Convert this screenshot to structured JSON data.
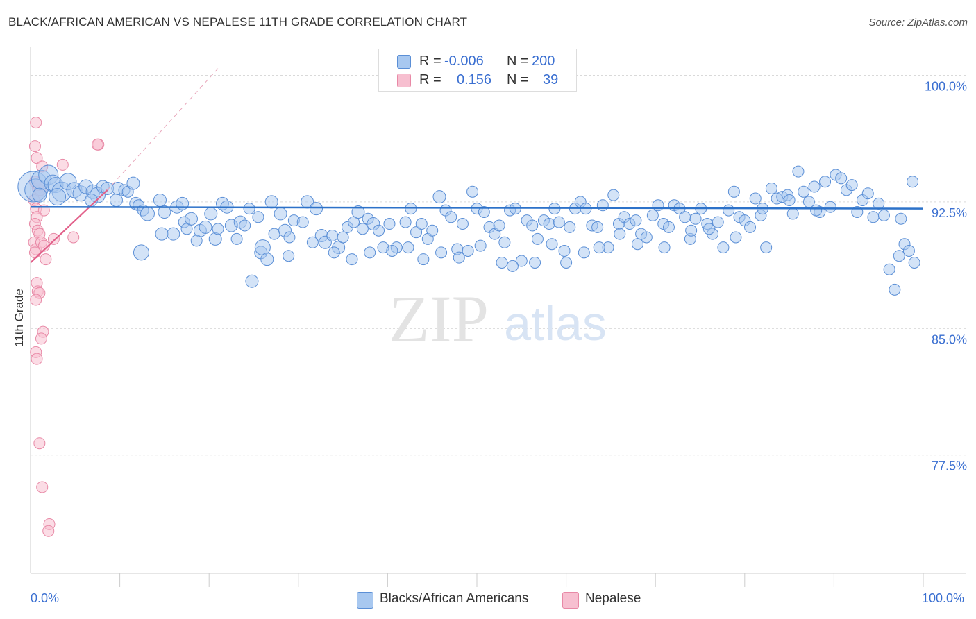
{
  "header": {
    "title": "BLACK/AFRICAN AMERICAN VS NEPALESE 11TH GRADE CORRELATION CHART",
    "source": "Source: ZipAtlas.com"
  },
  "legend_stats": {
    "blacks": {
      "r_label": "R =",
      "r_value": "-0.006",
      "n_label": "N =",
      "n_value": "200"
    },
    "nepalese": {
      "r_label": "R =",
      "r_value": "0.156",
      "n_label": "N =",
      "n_value": "39"
    }
  },
  "bottom_legend": {
    "blacks": "Blacks/African Americans",
    "nepalese": "Nepalese"
  },
  "axis_labels": {
    "y": "11th Grade",
    "x_min": "0.0%",
    "x_max": "100.0%",
    "y_ticks": [
      "100.0%",
      "92.5%",
      "85.0%",
      "77.5%"
    ]
  },
  "watermark": {
    "zip": "ZIP",
    "atlas": "atlas"
  },
  "colors": {
    "blue_fill": "#a8c8f0",
    "blue_stroke": "#5b8fd6",
    "blue_line": "#2d72c9",
    "pink_fill": "#f7bfd0",
    "pink_stroke": "#e889a6",
    "pink_line": "#e2608a",
    "grid": "#d9d9d9",
    "tick_text": "#3a6fd1"
  },
  "chart_data": {
    "type": "scatter",
    "title": "BLACK/AFRICAN AMERICAN VS NEPALESE 11TH GRADE CORRELATION CHART",
    "xlabel": "",
    "ylabel": "11th Grade",
    "xlim": [
      0,
      100
    ],
    "ylim": [
      70.5,
      101.5
    ],
    "y_ticks": [
      77.5,
      85.0,
      92.5,
      100.0
    ],
    "grid": true,
    "series": [
      {
        "name": "Blacks/African Americans",
        "r": -0.006,
        "n": 200,
        "trend": {
          "x": [
            0,
            100
          ],
          "y": [
            92.2,
            92.1
          ]
        },
        "points": [
          [
            0.3,
            93.4,
            22
          ],
          [
            0.6,
            93.2,
            16
          ],
          [
            1.2,
            93.8,
            14
          ],
          [
            2.0,
            94.1,
            14
          ],
          [
            2.5,
            93.6,
            12
          ],
          [
            2.8,
            93.5,
            11
          ],
          [
            3.5,
            93.1,
            14
          ],
          [
            4.2,
            93.7,
            12
          ],
          [
            4.9,
            93.2,
            11
          ],
          [
            5.6,
            93.0,
            11
          ],
          [
            6.2,
            93.4,
            10
          ],
          [
            7.0,
            93.1,
            10
          ],
          [
            7.5,
            92.9,
            11
          ],
          [
            8.1,
            93.4,
            9
          ],
          [
            8.6,
            93.3,
            9
          ],
          [
            9.6,
            92.6,
            9
          ],
          [
            9.8,
            93.3,
            9
          ],
          [
            10.5,
            93.2,
            8
          ],
          [
            10.9,
            93.1,
            8
          ],
          [
            11.5,
            93.6,
            9
          ],
          [
            11.8,
            92.4,
            9
          ],
          [
            12.1,
            92.3,
            8
          ],
          [
            12.6,
            92.0,
            8
          ],
          [
            13.1,
            91.8,
            10
          ],
          [
            14.5,
            92.6,
            9
          ],
          [
            15.0,
            91.9,
            9
          ],
          [
            16.4,
            92.2,
            9
          ],
          [
            17.0,
            92.4,
            9
          ],
          [
            14.7,
            90.6,
            9
          ],
          [
            16.0,
            90.6,
            9
          ],
          [
            17.2,
            91.3,
            8
          ],
          [
            17.5,
            90.9,
            8
          ],
          [
            18.0,
            91.5,
            9
          ],
          [
            19.0,
            90.8,
            9
          ],
          [
            19.6,
            91.0,
            9
          ],
          [
            20.2,
            91.8,
            9
          ],
          [
            20.7,
            90.3,
            9
          ],
          [
            21.5,
            92.4,
            9
          ],
          [
            22.0,
            92.2,
            9
          ],
          [
            22.5,
            91.1,
            9
          ],
          [
            23.5,
            91.3,
            9
          ],
          [
            24.0,
            91.1,
            8
          ],
          [
            24.5,
            92.1,
            8
          ],
          [
            25.5,
            91.6,
            8
          ],
          [
            24.8,
            87.8,
            9
          ],
          [
            25.8,
            89.5,
            9
          ],
          [
            26.0,
            89.8,
            11
          ],
          [
            27.0,
            92.5,
            9
          ],
          [
            27.3,
            90.6,
            8
          ],
          [
            28.0,
            91.8,
            9
          ],
          [
            28.5,
            90.8,
            9
          ],
          [
            29.0,
            90.4,
            8
          ],
          [
            29.5,
            91.4,
            8
          ],
          [
            30.5,
            91.3,
            8
          ],
          [
            31.0,
            92.5,
            9
          ],
          [
            32.0,
            92.1,
            9
          ],
          [
            32.6,
            90.5,
            9
          ],
          [
            33.0,
            90.1,
            9
          ],
          [
            33.8,
            90.5,
            8
          ],
          [
            34.5,
            89.8,
            9
          ],
          [
            35.0,
            90.4,
            8
          ],
          [
            35.5,
            91.0,
            8
          ],
          [
            36.2,
            91.3,
            8
          ],
          [
            36.7,
            91.9,
            9
          ],
          [
            37.2,
            90.9,
            8
          ],
          [
            37.8,
            91.5,
            8
          ],
          [
            38.4,
            91.2,
            9
          ],
          [
            39.0,
            90.8,
            8
          ],
          [
            39.5,
            89.8,
            8
          ],
          [
            40.2,
            91.2,
            8
          ],
          [
            41.0,
            89.8,
            8
          ],
          [
            42.0,
            91.3,
            8
          ],
          [
            42.6,
            92.1,
            8
          ],
          [
            43.2,
            90.7,
            8
          ],
          [
            43.8,
            91.2,
            8
          ],
          [
            44.5,
            90.3,
            8
          ],
          [
            45.0,
            90.8,
            8
          ],
          [
            45.8,
            92.8,
            9
          ],
          [
            46.5,
            92.0,
            8
          ],
          [
            47.1,
            91.6,
            8
          ],
          [
            47.8,
            89.7,
            8
          ],
          [
            48.4,
            91.2,
            8
          ],
          [
            49.0,
            89.6,
            8
          ],
          [
            49.5,
            93.1,
            8
          ],
          [
            50.0,
            92.1,
            8
          ],
          [
            50.8,
            91.9,
            8
          ],
          [
            51.4,
            91.0,
            8
          ],
          [
            52.0,
            90.6,
            8
          ],
          [
            52.5,
            91.1,
            8
          ],
          [
            53.1,
            90.1,
            8
          ],
          [
            53.7,
            92.0,
            8
          ],
          [
            54.3,
            92.1,
            8
          ],
          [
            55.0,
            89.0,
            8
          ],
          [
            55.6,
            91.4,
            8
          ],
          [
            56.2,
            91.1,
            8
          ],
          [
            56.8,
            90.3,
            8
          ],
          [
            57.5,
            91.4,
            8
          ],
          [
            58.1,
            91.2,
            8
          ],
          [
            58.7,
            92.1,
            8
          ],
          [
            59.2,
            91.3,
            8
          ],
          [
            59.8,
            89.6,
            8
          ],
          [
            60.4,
            91.0,
            8
          ],
          [
            61.0,
            92.1,
            8
          ],
          [
            61.6,
            92.5,
            8
          ],
          [
            62.2,
            92.1,
            8
          ],
          [
            62.9,
            91.1,
            8
          ],
          [
            63.5,
            91.0,
            8
          ],
          [
            64.1,
            92.3,
            8
          ],
          [
            64.7,
            89.8,
            8
          ],
          [
            65.3,
            92.9,
            8
          ],
          [
            65.9,
            91.2,
            8
          ],
          [
            66.5,
            91.6,
            8
          ],
          [
            67.1,
            91.2,
            8
          ],
          [
            67.8,
            91.4,
            8
          ],
          [
            68.4,
            90.6,
            8
          ],
          [
            69.0,
            90.4,
            8
          ],
          [
            69.7,
            91.7,
            8
          ],
          [
            70.3,
            92.3,
            8
          ],
          [
            70.9,
            91.2,
            8
          ],
          [
            71.5,
            91.0,
            8
          ],
          [
            72.1,
            92.3,
            8
          ],
          [
            72.7,
            92.1,
            8
          ],
          [
            73.3,
            91.6,
            8
          ],
          [
            73.9,
            90.3,
            8
          ],
          [
            74.5,
            91.5,
            8
          ],
          [
            75.1,
            92.1,
            8
          ],
          [
            75.8,
            91.2,
            8
          ],
          [
            76.4,
            90.6,
            8
          ],
          [
            77.0,
            91.3,
            8
          ],
          [
            77.6,
            89.8,
            8
          ],
          [
            78.2,
            92.0,
            8
          ],
          [
            78.8,
            93.1,
            8
          ],
          [
            79.4,
            91.6,
            8
          ],
          [
            80.0,
            91.4,
            8
          ],
          [
            80.6,
            91.0,
            8
          ],
          [
            81.2,
            92.7,
            8
          ],
          [
            81.8,
            91.7,
            8
          ],
          [
            82.4,
            89.8,
            8
          ],
          [
            83.0,
            93.3,
            8
          ],
          [
            83.6,
            92.7,
            8
          ],
          [
            84.2,
            92.8,
            8
          ],
          [
            84.8,
            92.9,
            8
          ],
          [
            85.4,
            91.8,
            8
          ],
          [
            86.0,
            94.3,
            8
          ],
          [
            86.6,
            93.1,
            8
          ],
          [
            87.2,
            92.5,
            8
          ],
          [
            87.8,
            93.4,
            8
          ],
          [
            88.4,
            91.9,
            8
          ],
          [
            89.0,
            93.7,
            8
          ],
          [
            89.6,
            92.2,
            8
          ],
          [
            90.2,
            94.1,
            8
          ],
          [
            90.8,
            93.9,
            8
          ],
          [
            91.4,
            93.2,
            8
          ],
          [
            92.0,
            93.5,
            8
          ],
          [
            92.6,
            91.9,
            8
          ],
          [
            93.2,
            92.6,
            8
          ],
          [
            93.8,
            93.0,
            8
          ],
          [
            94.4,
            91.6,
            8
          ],
          [
            95.0,
            92.4,
            8
          ],
          [
            95.6,
            91.7,
            8
          ],
          [
            96.2,
            88.5,
            8
          ],
          [
            96.8,
            87.3,
            8
          ],
          [
            97.3,
            89.3,
            8
          ],
          [
            97.9,
            90.0,
            8
          ],
          [
            98.4,
            89.6,
            8
          ],
          [
            99.0,
            88.9,
            8
          ],
          [
            98.8,
            93.7,
            8
          ],
          [
            97.5,
            91.5,
            8
          ],
          [
            1.0,
            92.9,
            10
          ],
          [
            3.0,
            92.8,
            12
          ],
          [
            6.8,
            92.6,
            9
          ],
          [
            12.4,
            89.5,
            11
          ],
          [
            18.6,
            90.2,
            8
          ],
          [
            21.0,
            90.9,
            8
          ],
          [
            23.1,
            90.3,
            8
          ],
          [
            26.5,
            89.1,
            9
          ],
          [
            28.9,
            89.3,
            8
          ],
          [
            31.6,
            90.1,
            8
          ],
          [
            34.0,
            89.5,
            8
          ],
          [
            36.0,
            89.1,
            8
          ],
          [
            38.0,
            89.5,
            8
          ],
          [
            40.5,
            89.6,
            8
          ],
          [
            42.3,
            89.8,
            8
          ],
          [
            44.0,
            89.1,
            8
          ],
          [
            46.0,
            89.5,
            8
          ],
          [
            48.0,
            89.2,
            8
          ],
          [
            50.4,
            89.9,
            8
          ],
          [
            52.8,
            88.9,
            8
          ],
          [
            54.0,
            88.7,
            8
          ],
          [
            56.5,
            88.9,
            8
          ],
          [
            58.4,
            90.0,
            8
          ],
          [
            60.0,
            88.9,
            8
          ],
          [
            62.0,
            89.5,
            8
          ],
          [
            63.7,
            89.8,
            8
          ],
          [
            66.0,
            90.6,
            8
          ],
          [
            68.0,
            90.0,
            8
          ],
          [
            71.0,
            89.8,
            8
          ],
          [
            74.0,
            90.8,
            8
          ],
          [
            76.0,
            90.9,
            8
          ],
          [
            79.0,
            90.4,
            8
          ],
          [
            82.0,
            92.1,
            8
          ],
          [
            85.0,
            92.6,
            8
          ],
          [
            88.0,
            92.0,
            8
          ]
        ]
      },
      {
        "name": "Nepalese",
        "r": 0.156,
        "n": 39,
        "trend": {
          "x": [
            0,
            8.6
          ],
          "y": [
            88.9,
            93.2
          ],
          "dashed_to": [
            21.0,
            100.4
          ]
        },
        "points": [
          [
            0.6,
            97.2
          ],
          [
            0.5,
            95.8
          ],
          [
            0.7,
            95.1
          ],
          [
            1.3,
            94.6
          ],
          [
            3.6,
            94.7
          ],
          [
            7.6,
            95.9
          ],
          [
            7.5,
            95.9
          ],
          [
            0.5,
            93.7
          ],
          [
            0.8,
            93.3
          ],
          [
            0.9,
            92.9
          ],
          [
            1.1,
            93.2
          ],
          [
            0.4,
            92.6
          ],
          [
            0.6,
            92.1
          ],
          [
            1.5,
            92.0
          ],
          [
            0.7,
            91.6
          ],
          [
            0.5,
            91.2
          ],
          [
            0.8,
            90.8
          ],
          [
            1.0,
            90.6
          ],
          [
            2.6,
            90.3
          ],
          [
            4.8,
            90.4
          ],
          [
            0.4,
            90.1
          ],
          [
            0.6,
            89.7
          ],
          [
            1.2,
            90.1
          ],
          [
            1.5,
            89.9
          ],
          [
            0.5,
            89.5
          ],
          [
            1.7,
            89.1
          ],
          [
            0.7,
            87.7
          ],
          [
            0.8,
            87.2
          ],
          [
            1.0,
            87.1
          ],
          [
            0.6,
            86.7
          ],
          [
            1.4,
            84.8
          ],
          [
            1.2,
            84.4
          ],
          [
            0.6,
            83.6
          ],
          [
            0.7,
            83.2
          ],
          [
            1.0,
            78.2
          ],
          [
            1.3,
            75.6
          ],
          [
            2.1,
            73.4
          ],
          [
            2.0,
            73.0
          ],
          [
            0.9,
            93.5
          ]
        ]
      }
    ]
  }
}
